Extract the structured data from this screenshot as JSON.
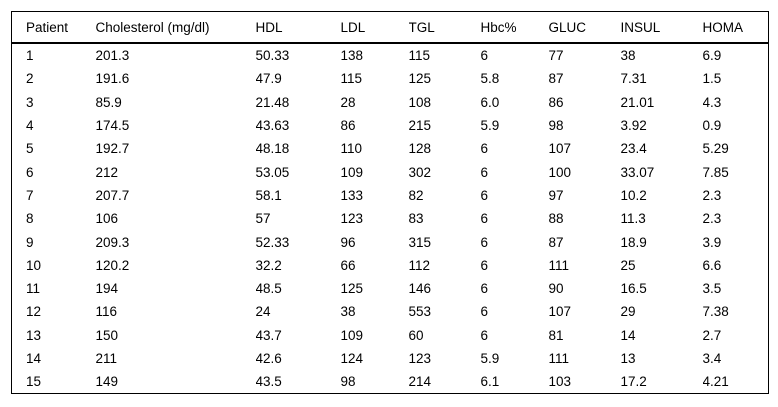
{
  "table": {
    "columns": [
      "Patient",
      "Cholesterol (mg/dl)",
      "HDL",
      "LDL",
      "TGL",
      "Hbc%",
      "GLUC",
      "INSUL",
      "HOMA"
    ],
    "rows": [
      [
        "1",
        "201.3",
        "50.33",
        "138",
        "115",
        "6",
        "77",
        "38",
        "6.9"
      ],
      [
        "2",
        "191.6",
        "47.9",
        "115",
        "125",
        "5.8",
        "87",
        "7.31",
        "1.5"
      ],
      [
        "3",
        "85.9",
        "21.48",
        "28",
        "108",
        "6.0",
        "86",
        "21.01",
        "4.3"
      ],
      [
        "4",
        "174.5",
        "43.63",
        "86",
        "215",
        "5.9",
        "98",
        "3.92",
        "0.9"
      ],
      [
        "5",
        "192.7",
        "48.18",
        "110",
        "128",
        "6",
        "107",
        "23.4",
        "5.29"
      ],
      [
        "6",
        "212",
        "53.05",
        "109",
        "302",
        "6",
        "100",
        "33.07",
        "7.85"
      ],
      [
        "7",
        "207.7",
        "58.1",
        "133",
        "82",
        "6",
        "97",
        "10.2",
        "2.3"
      ],
      [
        "8",
        "106",
        "57",
        "123",
        "83",
        "6",
        "88",
        "11.3",
        "2.3"
      ],
      [
        "9",
        "209.3",
        "52.33",
        "96",
        "315",
        "6",
        "87",
        "18.9",
        "3.9"
      ],
      [
        "10",
        "120.2",
        "32.2",
        "66",
        "112",
        "6",
        "111",
        "25",
        "6.6"
      ],
      [
        "11",
        "194",
        "48.5",
        "125",
        "146",
        "6",
        "90",
        "16.5",
        "3.5"
      ],
      [
        "12",
        "116",
        "24",
        "38",
        "553",
        "6",
        "107",
        "29",
        "7.38"
      ],
      [
        "13",
        "150",
        "43.7",
        "109",
        "60",
        "6",
        "81",
        "14",
        "2.7"
      ],
      [
        "14",
        "211",
        "42.6",
        "124",
        "123",
        "5.9",
        "111",
        "13",
        "3.4"
      ],
      [
        "15",
        "149",
        "43.5",
        "98",
        "214",
        "6.1",
        "103",
        "17.2",
        "4.21"
      ]
    ]
  },
  "colors": {
    "border": "#000000",
    "text": "#000000",
    "background": "#ffffff"
  }
}
